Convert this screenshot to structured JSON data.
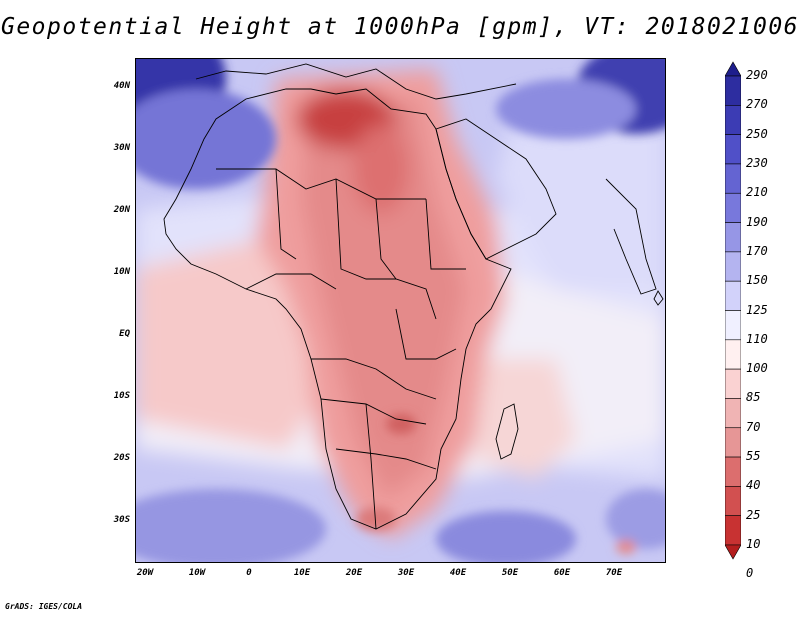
{
  "title": "Geopotential Height at 1000hPa [gpm], VT: 2018021006",
  "credit": "GrADS: IGES/COLA",
  "lat_labels": [
    "40N",
    "30N",
    "20N",
    "10N",
    "EQ",
    "10S",
    "20S",
    "30S"
  ],
  "lon_labels": [
    "20W",
    "10W",
    "0",
    "10E",
    "20E",
    "30E",
    "40E",
    "50E",
    "60E",
    "70E"
  ],
  "colorbar": {
    "levels": [
      "290",
      "270",
      "250",
      "230",
      "210",
      "190",
      "170",
      "150",
      "125",
      "110",
      "100",
      "85",
      "70",
      "55",
      "40",
      "25",
      "10",
      "0"
    ],
    "colors": [
      "#1e1e8c",
      "#2d2da0",
      "#3c3cb4",
      "#5050c8",
      "#6464d2",
      "#7878dc",
      "#9696e6",
      "#b4b4f0",
      "#d2d2fa",
      "#f0f0ff",
      "#fff0f0",
      "#fad2d2",
      "#f0b4b4",
      "#e69696",
      "#dc6e6e",
      "#d25050",
      "#c83232",
      "#b41e1e"
    ]
  },
  "map": {
    "lon_range": [
      -22,
      80
    ],
    "lat_range": [
      -36,
      45
    ],
    "field": "Geopotential Height at 1000hPa",
    "units": "gpm",
    "valid_time": "2018021006"
  }
}
